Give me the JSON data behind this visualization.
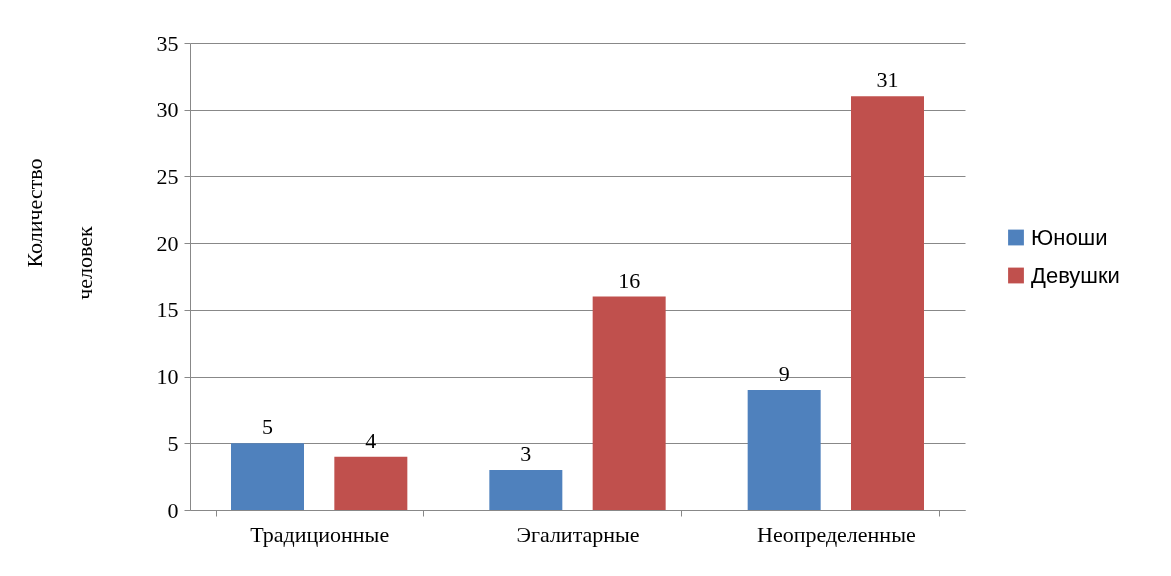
{
  "chart_data": {
    "type": "bar",
    "ylabel": "Количество человек",
    "categories": [
      "Традиционные",
      "Эгалитарные",
      "Неопределенные"
    ],
    "series": [
      {
        "name": "Юноши",
        "color": "#4f81bd",
        "values": [
          5,
          3,
          9
        ]
      },
      {
        "name": "Девушки",
        "color": "#c0504d",
        "values": [
          4,
          16,
          31
        ]
      }
    ],
    "ylim": [
      0,
      35
    ],
    "yticks": [
      0,
      5,
      10,
      15,
      20,
      25,
      30,
      35
    ],
    "grid": "y",
    "legend": "right",
    "data_labels": true
  }
}
